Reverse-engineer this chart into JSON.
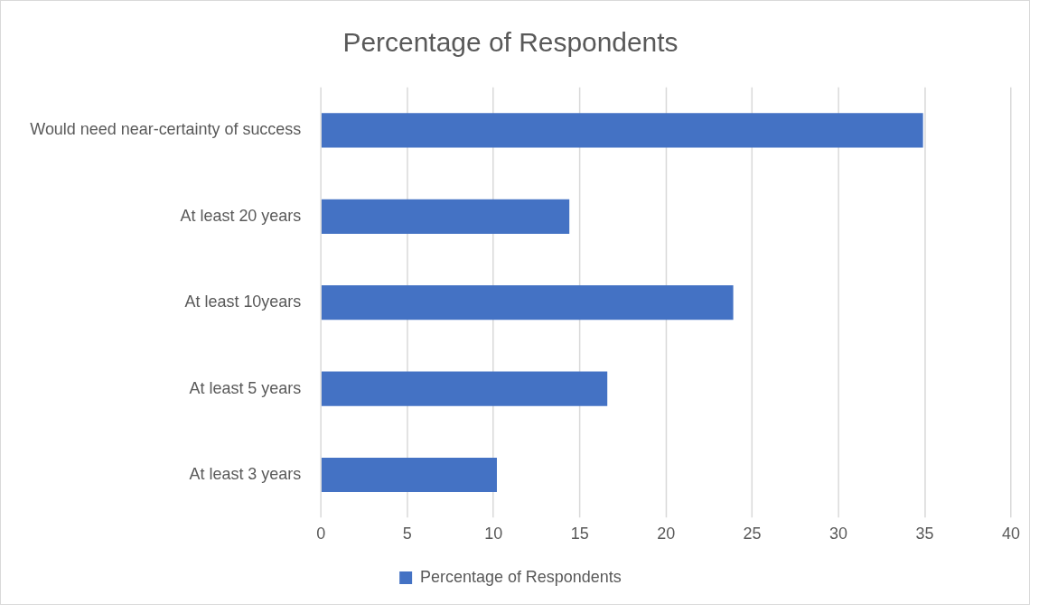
{
  "chart_data": {
    "type": "bar",
    "orientation": "horizontal",
    "title": "Percentage of Respondents",
    "categories": [
      "Would need near-certainty of success",
      "At least 20 years",
      "At least 10years",
      "At least 5 years",
      "At least 3 years"
    ],
    "series": [
      {
        "name": "Percentage of Respondents",
        "color": "#4472c4",
        "values": [
          34.9,
          14.4,
          23.9,
          16.6,
          10.2
        ]
      }
    ],
    "xlim": [
      0,
      40
    ],
    "xticks": [
      0,
      5,
      10,
      15,
      20,
      25,
      30,
      35,
      40
    ],
    "grid": "x",
    "legend": "bottom"
  }
}
